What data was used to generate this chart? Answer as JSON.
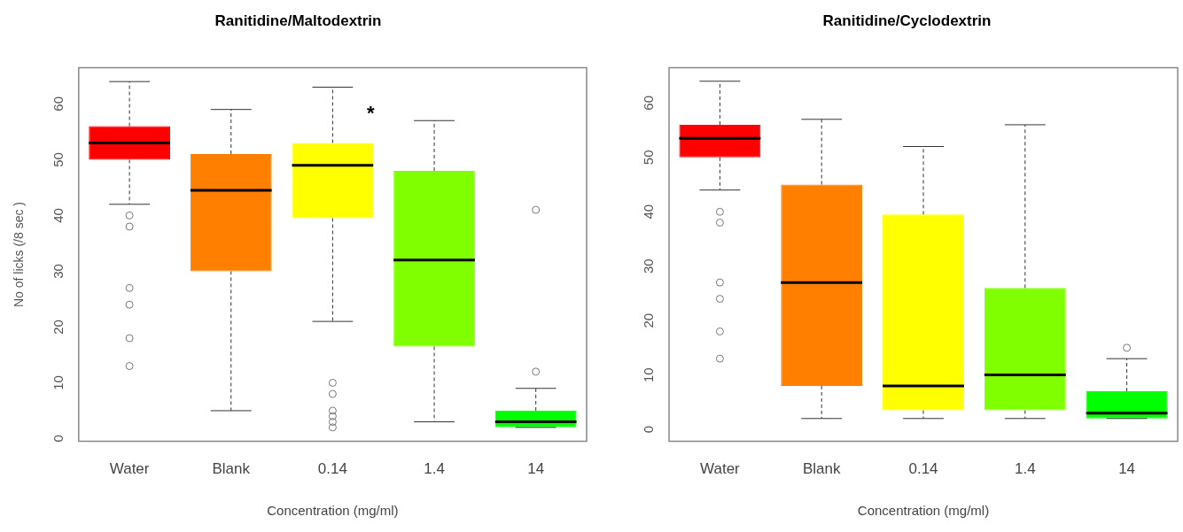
{
  "chart_data": [
    {
      "type": "box",
      "title": "Ranitidine/Maltodextrin",
      "xlabel": "Concentration (mg/ml)",
      "ylabel": "No of licks (/8 sec )",
      "categories": [
        "Water",
        "Blank",
        "0.14",
        "1.4",
        "14"
      ],
      "colors": [
        "#ff0000",
        "#ff7f00",
        "#ffff00",
        "#80ff00",
        "#00ff00"
      ],
      "boxes": [
        {
          "low": 42,
          "q1": 50,
          "median": 53,
          "q3": 56,
          "high": 64,
          "outliers": [
            40,
            38,
            27,
            24,
            18,
            13
          ]
        },
        {
          "low": 5,
          "q1": 30,
          "median": 44.5,
          "q3": 51,
          "high": 59
        },
        {
          "low": 21,
          "q1": 39.5,
          "median": 49,
          "q3": 53,
          "high": 63,
          "outliers": [
            10,
            8,
            5,
            4,
            3,
            2
          ]
        },
        {
          "low": 3,
          "q1": 16.5,
          "median": 32,
          "q3": 48,
          "high": 57
        },
        {
          "low": 2,
          "q1": 2,
          "median": 3,
          "q3": 5,
          "high": 9,
          "outliers": [
            12,
            41
          ]
        }
      ],
      "ylim": [
        -0.5,
        66.5
      ],
      "yticks": [
        0,
        10,
        20,
        30,
        40,
        50,
        60
      ],
      "grid": false,
      "annotations": [
        "*"
      ]
    },
    {
      "type": "box",
      "title": "Ranitidine/Cyclodextrin",
      "xlabel": "Concentration (mg/ml)",
      "categories": [
        "Water",
        "Blank",
        "0.14",
        "1.4",
        "14"
      ],
      "colors": [
        "#ff0000",
        "#ff7f00",
        "#ffff00",
        "#80ff00",
        "#00ff00"
      ],
      "boxes": [
        {
          "low": 44,
          "q1": 50,
          "median": 53.5,
          "q3": 56,
          "high": 64,
          "outliers": [
            40,
            38,
            27,
            24,
            18,
            13
          ]
        },
        {
          "low": 2,
          "q1": 8,
          "median": 27,
          "q3": 45,
          "high": 57
        },
        {
          "low": 2,
          "q1": 3.5,
          "median": 8,
          "q3": 39.5,
          "high": 52
        },
        {
          "low": 2,
          "q1": 3.5,
          "median": 10,
          "q3": 26,
          "high": 56
        },
        {
          "low": 2,
          "q1": 2,
          "median": 3,
          "q3": 7,
          "high": 13,
          "outliers": [
            15
          ]
        }
      ],
      "ylim": [
        -2.2,
        66.5
      ],
      "yticks": [
        0,
        10,
        20,
        30,
        40,
        50,
        60
      ],
      "grid": false
    }
  ]
}
